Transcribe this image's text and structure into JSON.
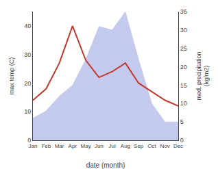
{
  "chart_data": {
    "type": "line",
    "categories": [
      "Jan",
      "Feb",
      "Mar",
      "Apr",
      "May",
      "Jun",
      "Jul",
      "Aug",
      "Sep",
      "Oct",
      "Nov",
      "Dec"
    ],
    "series": [
      {
        "type": "area",
        "color": "#b0b8e8",
        "axis": "y2",
        "values": [
          6,
          8,
          12,
          15,
          22,
          31,
          30,
          35,
          22,
          10,
          5,
          5
        ]
      },
      {
        "type": "line",
        "color": "#c0392b",
        "values": [
          14,
          18,
          27,
          40,
          28,
          22,
          24,
          27,
          20,
          17,
          14,
          12
        ]
      }
    ],
    "xlabel": "date (month)",
    "ylabel": "max temp (C)",
    "y2label": "med. precipitation\n(kg/m2)",
    "ylim": [
      0,
      45
    ],
    "yticks": [
      0,
      10,
      20,
      30,
      40
    ],
    "y2lim": [
      0,
      35
    ],
    "y2ticks": [
      0,
      5,
      10,
      15,
      20,
      25,
      30,
      35
    ],
    "grid": false
  }
}
